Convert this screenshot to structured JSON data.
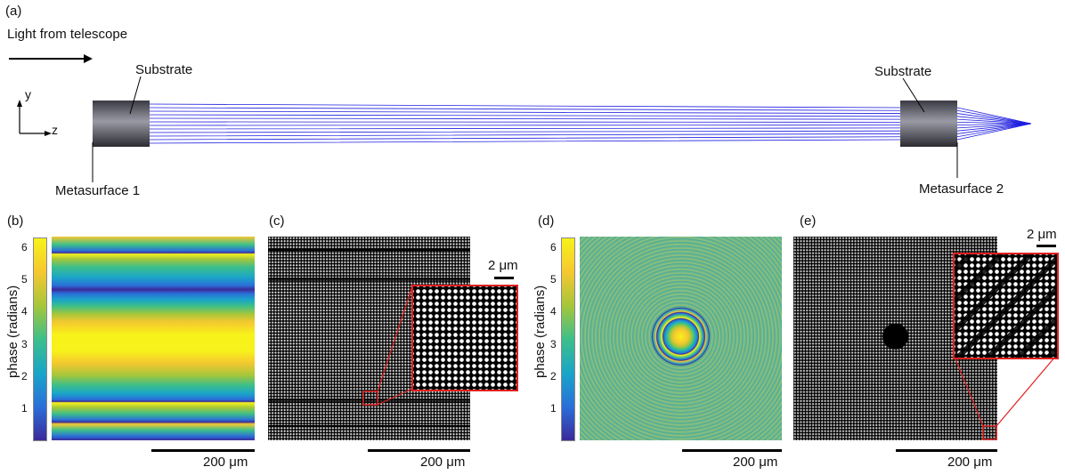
{
  "panel_a": {
    "tag": "(a)",
    "light_label": "Light from telescope",
    "substrate_left": "Substrate",
    "substrate_right": "Substrate",
    "metasurface1": "Metasurface 1",
    "metasurface2": "Metasurface 2",
    "axis_y": "y",
    "axis_z": "z"
  },
  "panel_b": {
    "tag": "(b)",
    "ylabel": "phase (radians)",
    "ticks": [
      "6",
      "5",
      "4",
      "3",
      "2",
      "1"
    ],
    "scale": "200 μm"
  },
  "panel_c": {
    "tag": "(c)",
    "scale": "200 μm",
    "inset_scale": "2 μm"
  },
  "panel_d": {
    "tag": "(d)",
    "ylabel": "phase (radians)",
    "ticks": [
      "6",
      "5",
      "4",
      "3",
      "2",
      "1"
    ],
    "scale": "200 μm"
  },
  "panel_e": {
    "tag": "(e)",
    "scale": "200 μm",
    "inset_scale": "2 μm"
  },
  "colors": {
    "rays": "#1f1fe0",
    "inset_border": "#e02020",
    "colormap": [
      "#3b2a9a",
      "#2a6fd8",
      "#1aa5c8",
      "#3cbf8a",
      "#a6c63a",
      "#f5c830",
      "#f7f21a"
    ]
  }
}
